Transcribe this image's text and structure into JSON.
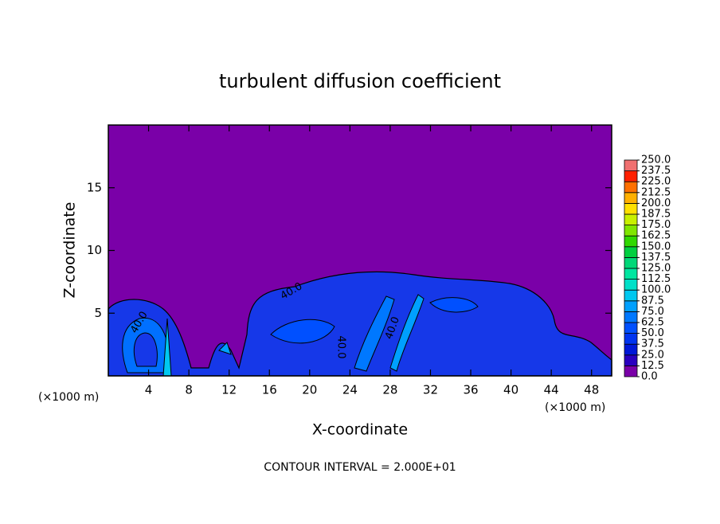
{
  "chart_data": {
    "type": "contour",
    "title": "turbulent diffusion coefficient",
    "xlabel": "X-coordinate",
    "ylabel": "Z-coordinate",
    "x_unit_labels": [
      "(×1000 m)",
      "(×1000 m)"
    ],
    "footer": "CONTOUR INTERVAL = 2.000E+01",
    "contour_labels": [
      "40.0",
      "40.0",
      "40.0",
      "40.0"
    ],
    "xlim": [
      0,
      50
    ],
    "xticks": [
      4,
      8,
      12,
      16,
      20,
      24,
      28,
      32,
      36,
      40,
      44,
      48
    ],
    "ylim": [
      0,
      20
    ],
    "yticks": [
      5,
      10,
      15
    ],
    "background_color": "#7a00a8",
    "colorbar": {
      "levels": [
        {
          "value": 0,
          "label": "0.0"
        },
        12.5,
        {
          "value": 25,
          "label": "25.0"
        },
        37.5,
        {
          "value": 50,
          "label": "50.0"
        },
        62.5,
        {
          "value": 75,
          "label": "75.0"
        },
        87.5,
        {
          "value": 100,
          "label": "100.0"
        },
        112.5,
        {
          "value": 125,
          "label": "125.0"
        },
        137.5,
        {
          "value": 150,
          "label": "150.0"
        },
        162.5,
        {
          "value": 175,
          "label": "175.0"
        },
        187.5,
        {
          "value": 200,
          "label": "200.0"
        },
        212.5,
        {
          "value": 225,
          "label": "225.0"
        },
        237.5,
        {
          "value": 250,
          "label": "250.0"
        }
      ],
      "colors": [
        "#7a00a8",
        "#2a00c0",
        "#0018d8",
        "#0034f0",
        "#0050ff",
        "#0078ff",
        "#00a0ff",
        "#00c8f0",
        "#00e0c8",
        "#00e6a0",
        "#00d878",
        "#00d040",
        "#30d800",
        "#80e600",
        "#c8f000",
        "#ffe000",
        "#ffb000",
        "#ff7000",
        "#ff2000",
        "#f07070"
      ]
    }
  }
}
